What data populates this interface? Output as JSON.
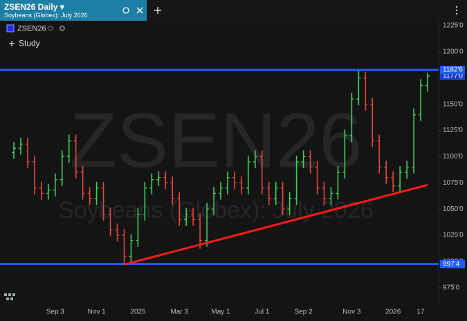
{
  "chart_data": {
    "type": "ohlc",
    "title": "ZSEN26 Daily",
    "subtitle": "Soybeans (Globex): July 2026",
    "symbol": "ZSEN26",
    "study_button": "Study",
    "categories": [
      null,
      null,
      null,
      null,
      null,
      null,
      "Sep 3",
      null,
      null,
      null,
      null,
      null,
      "Nov 1",
      null,
      null,
      null,
      null,
      null,
      "2025",
      null,
      null,
      null,
      null,
      null,
      "Mar 3",
      null,
      null,
      null,
      null,
      null,
      "May 1",
      null,
      null,
      null,
      null,
      null,
      "Jul 1",
      null,
      null,
      null,
      null,
      null,
      "Sep 2",
      null,
      null,
      null,
      null,
      null,
      null,
      "Nov 3",
      null,
      null,
      null,
      null,
      null,
      "2026",
      null,
      null,
      null,
      "17",
      null
    ],
    "open": [
      1104,
      1108,
      1112,
      1095,
      1070,
      1065,
      1068,
      1078,
      1100,
      1115,
      1085,
      1065,
      1060,
      1070,
      1045,
      1030,
      1025,
      1005,
      1020,
      1045,
      1070,
      1078,
      1080,
      1075,
      1060,
      1040,
      1045,
      1040,
      1020,
      1050,
      1065,
      1070,
      1080,
      1075,
      1070,
      1095,
      1100,
      1070,
      1060,
      1070,
      1050,
      1060,
      1095,
      1100,
      1090,
      1070,
      1060,
      1065,
      1085,
      1120,
      1155,
      1175,
      1150,
      1115,
      1090,
      1080,
      1072,
      1085,
      1090,
      1140,
      1168
    ],
    "high": [
      1114,
      1118,
      1118,
      1101,
      1076,
      1074,
      1084,
      1106,
      1121,
      1121,
      1091,
      1071,
      1076,
      1076,
      1051,
      1036,
      1031,
      1026,
      1051,
      1076,
      1084,
      1086,
      1086,
      1081,
      1066,
      1051,
      1051,
      1046,
      1056,
      1071,
      1076,
      1086,
      1086,
      1081,
      1101,
      1106,
      1106,
      1076,
      1076,
      1076,
      1066,
      1101,
      1106,
      1106,
      1096,
      1076,
      1071,
      1091,
      1126,
      1161,
      1182,
      1181,
      1156,
      1121,
      1096,
      1086,
      1091,
      1096,
      1146,
      1174,
      1180
    ],
    "low": [
      1098,
      1102,
      1089,
      1064,
      1059,
      1059,
      1062,
      1072,
      1094,
      1079,
      1059,
      1054,
      1054,
      1039,
      1024,
      1019,
      997,
      999,
      1014,
      1039,
      1064,
      1072,
      1069,
      1054,
      1034,
      1034,
      1034,
      1012,
      1014,
      1044,
      1059,
      1064,
      1069,
      1064,
      1064,
      1089,
      1064,
      1054,
      1054,
      1044,
      1044,
      1054,
      1089,
      1084,
      1064,
      1054,
      1054,
      1059,
      1079,
      1114,
      1149,
      1144,
      1109,
      1084,
      1074,
      1066,
      1066,
      1079,
      1084,
      1134,
      1162
    ],
    "close": [
      1108,
      1112,
      1095,
      1070,
      1065,
      1068,
      1078,
      1100,
      1115,
      1085,
      1065,
      1060,
      1070,
      1045,
      1030,
      1025,
      1005,
      1020,
      1045,
      1070,
      1078,
      1080,
      1075,
      1060,
      1040,
      1045,
      1040,
      1020,
      1050,
      1065,
      1070,
      1080,
      1075,
      1070,
      1095,
      1100,
      1070,
      1060,
      1070,
      1050,
      1060,
      1095,
      1100,
      1090,
      1070,
      1060,
      1065,
      1085,
      1120,
      1155,
      1175,
      1150,
      1115,
      1090,
      1080,
      1072,
      1085,
      1090,
      1140,
      1168,
      1177
    ],
    "up_color": "#3fd05a",
    "down_color": "#e5473d",
    "ylim": [
      959,
      1231
    ],
    "yticks": [
      {
        "value": 975,
        "label": "975'0"
      },
      {
        "value": 1000,
        "label": "1000'0"
      },
      {
        "value": 1025,
        "label": "1025'0"
      },
      {
        "value": 1050,
        "label": "1050'0"
      },
      {
        "value": 1075,
        "label": "1075'0"
      },
      {
        "value": 1100,
        "label": "1100'0"
      },
      {
        "value": 1125,
        "label": "1125'0"
      },
      {
        "value": 1150,
        "label": "1150'0"
      },
      {
        "value": 1175,
        "label": "1175'0"
      },
      {
        "value": 1200,
        "label": "1200'0"
      },
      {
        "value": 1225,
        "label": "1225'0"
      }
    ],
    "grid": false,
    "horizontal_lines": [
      {
        "value": 1182.75,
        "label": "1182'6",
        "color": "#1f5bff"
      },
      {
        "value": 997.5,
        "label": "997'4",
        "color": "#1f5bff"
      }
    ],
    "last_price": {
      "value": 1177,
      "label": "1177'0"
    },
    "trendline": {
      "x": [
        16,
        60
      ],
      "y": [
        997,
        1073
      ],
      "color": "#ff1a1a"
    }
  }
}
